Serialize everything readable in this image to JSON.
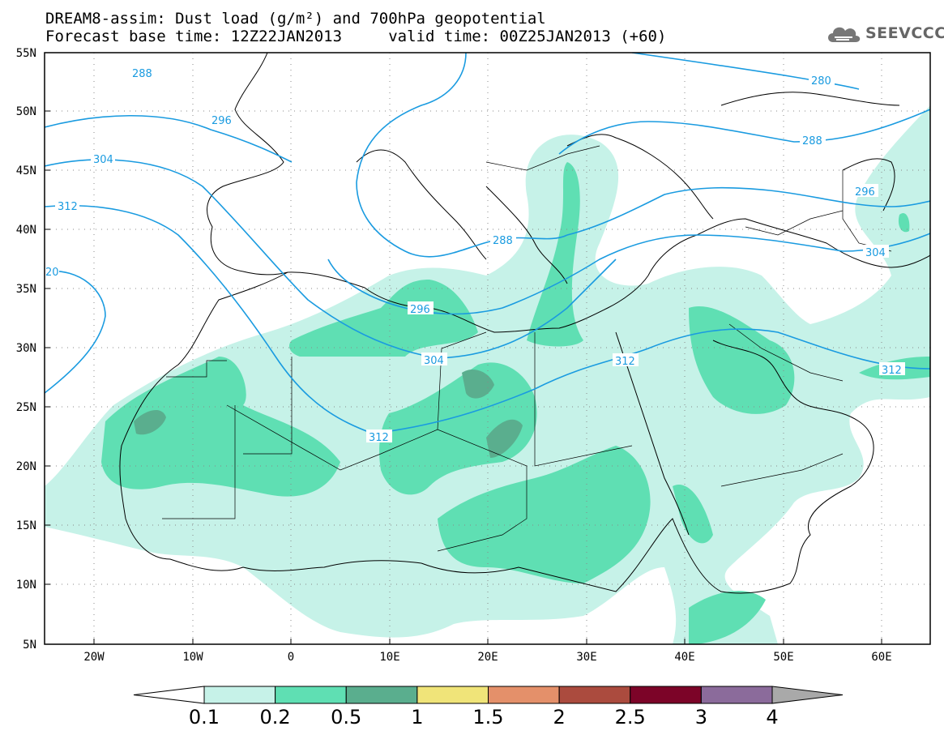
{
  "header": {
    "title_line1": "DREAM8-assim: Dust load (g/m²) and 700hPa geopotential",
    "title_line2": "Forecast base time: 12Z22JAN2013     valid time: 00Z25JAN2013 (+60)"
  },
  "logo": {
    "text": "SEEVCCC",
    "icon": "cloud-icon"
  },
  "map": {
    "lat_labels": [
      "55N",
      "50N",
      "45N",
      "40N",
      "35N",
      "30N",
      "25N",
      "20N",
      "15N",
      "10N",
      "5N"
    ],
    "lon_labels": [
      "20W",
      "10W",
      "0",
      "10E",
      "20E",
      "30E",
      "40E",
      "50E",
      "60E"
    ],
    "contours": [
      {
        "label": "288",
        "color": "#1a9be0"
      },
      {
        "label": "296",
        "color": "#1a9be0"
      },
      {
        "label": "304",
        "color": "#1a9be0"
      },
      {
        "label": "312",
        "color": "#1a9be0"
      },
      {
        "label": "20",
        "color": "#1a9be0"
      },
      {
        "label": "280",
        "color": "#1a9be0"
      },
      {
        "label": "288",
        "color": "#1a9be0"
      },
      {
        "label": "296",
        "color": "#1a9be0"
      },
      {
        "label": "304",
        "color": "#1a9be0"
      },
      {
        "label": "312",
        "color": "#1a9be0"
      },
      {
        "label": "288",
        "color": "#1a9be0"
      },
      {
        "label": "296",
        "color": "#1a9be0"
      },
      {
        "label": "304",
        "color": "#1a9be0"
      },
      {
        "label": "312",
        "color": "#1a9be0"
      }
    ]
  },
  "colorbar": {
    "labels": [
      "0.1",
      "0.2",
      "0.5",
      "1",
      "1.5",
      "2",
      "2.5",
      "3",
      "4"
    ],
    "colors": [
      "#ffffff",
      "#c6f2e8",
      "#5fdfb3",
      "#5aae8e",
      "#f0e479",
      "#e4906a",
      "#ab4b3e",
      "#7c0428",
      "#8b6b9b",
      "#a9a9a9"
    ]
  }
}
